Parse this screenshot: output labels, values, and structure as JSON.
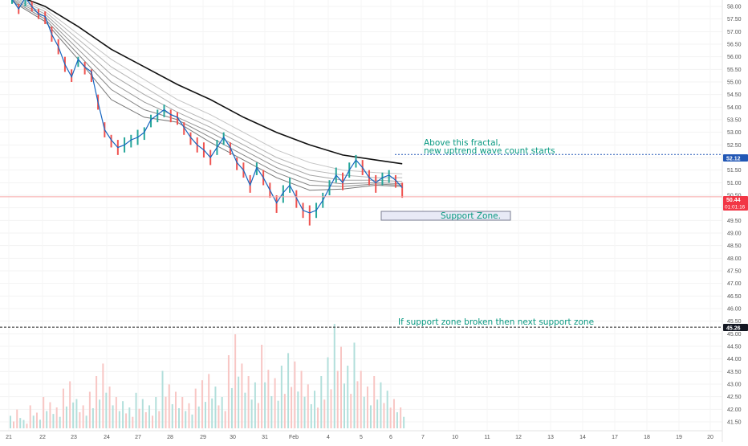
{
  "colors": {
    "up": "#26a69a",
    "down": "#ef5350",
    "up_volume": "#b2dfdb",
    "down_volume": "#f8c6c4",
    "price_line": "#1565c0",
    "slow_ma": "#111111",
    "ribbon": [
      "#c4c4c4",
      "#b6b6b6",
      "#a6a6a6",
      "#969696",
      "#868686",
      "#767676"
    ],
    "annotation": "#089981",
    "fractal_tag": "#2157b5",
    "last_price_tag": "#f23645",
    "support_line_tag": "#131722",
    "zone_fill": "#e8eaf6",
    "zone_border": "#7b7f93"
  },
  "chart_data": {
    "type": "candlestick",
    "y_ticks": [
      "58.00",
      "57.50",
      "57.00",
      "56.50",
      "56.00",
      "55.50",
      "55.00",
      "54.50",
      "54.00",
      "53.50",
      "53.00",
      "52.50",
      "52.00",
      "51.50",
      "51.00",
      "50.50",
      "50.00",
      "49.50",
      "49.00",
      "48.50",
      "48.00",
      "47.50",
      "47.00",
      "46.50",
      "46.00",
      "45.50",
      "45.00",
      "44.50",
      "44.00",
      "43.50",
      "43.00",
      "42.50",
      "42.00",
      "41.50"
    ],
    "ylim": [
      41.28,
      58.47
    ],
    "x_ticks": [
      "21",
      "22",
      "23",
      "24",
      "27",
      "28",
      "29",
      "30",
      "31",
      "Feb",
      "4",
      "5",
      "6",
      "7",
      "10",
      "11",
      "12",
      "13",
      "14",
      "17",
      "18",
      "19",
      "20"
    ],
    "price_points": [
      [
        0.0,
        58.3
      ],
      [
        0.4,
        57.9
      ],
      [
        0.8,
        58.35
      ],
      [
        1.2,
        58.0
      ],
      [
        1.6,
        57.7
      ],
      [
        2.0,
        57.6
      ],
      [
        2.4,
        56.9
      ],
      [
        2.8,
        56.4
      ],
      [
        3.2,
        55.7
      ],
      [
        3.6,
        55.2
      ],
      [
        4.0,
        55.9
      ],
      [
        4.4,
        55.6
      ],
      [
        4.8,
        55.4
      ],
      [
        5.2,
        54.2
      ],
      [
        5.6,
        53.1
      ],
      [
        6.0,
        52.7
      ],
      [
        6.4,
        52.4
      ],
      [
        6.8,
        52.5
      ],
      [
        7.2,
        52.7
      ],
      [
        7.6,
        52.8
      ],
      [
        8.0,
        53.0
      ],
      [
        8.4,
        53.5
      ],
      [
        8.8,
        53.7
      ],
      [
        9.2,
        53.9
      ],
      [
        9.6,
        53.7
      ],
      [
        10.0,
        53.6
      ],
      [
        10.4,
        53.2
      ],
      [
        10.8,
        52.8
      ],
      [
        11.2,
        52.5
      ],
      [
        11.6,
        52.3
      ],
      [
        12.0,
        52.0
      ],
      [
        12.4,
        52.4
      ],
      [
        12.8,
        52.8
      ],
      [
        13.2,
        52.4
      ],
      [
        13.6,
        51.8
      ],
      [
        14.0,
        51.5
      ],
      [
        14.4,
        50.9
      ],
      [
        14.8,
        51.6
      ],
      [
        15.2,
        51.2
      ],
      [
        15.6,
        50.7
      ],
      [
        16.0,
        50.2
      ],
      [
        16.4,
        50.6
      ],
      [
        16.8,
        50.9
      ],
      [
        17.2,
        50.4
      ],
      [
        17.6,
        49.9
      ],
      [
        18.0,
        49.8
      ],
      [
        18.4,
        49.9
      ],
      [
        18.8,
        50.3
      ],
      [
        19.2,
        50.8
      ],
      [
        19.6,
        51.3
      ],
      [
        20.0,
        51.0
      ],
      [
        20.4,
        51.5
      ],
      [
        20.8,
        51.9
      ],
      [
        21.2,
        51.6
      ],
      [
        21.6,
        51.2
      ],
      [
        22.0,
        51.0
      ],
      [
        22.4,
        51.2
      ],
      [
        22.8,
        51.3
      ],
      [
        23.2,
        51.1
      ],
      [
        23.6,
        50.8
      ]
    ],
    "wick_high": [
      58.5,
      58.1,
      58.4,
      58.2,
      57.9,
      57.8,
      57.2,
      56.7,
      56.0,
      55.5,
      56.0,
      55.8,
      55.5,
      54.5,
      53.4,
      52.9,
      52.7,
      52.8,
      52.9,
      53.1,
      53.2,
      53.7,
      53.9,
      54.1,
      53.9,
      53.8,
      53.4,
      53.0,
      52.8,
      52.6,
      52.3,
      52.7,
      53.0,
      52.6,
      52.0,
      51.8,
      51.3,
      51.8,
      51.5,
      51.0,
      50.5,
      50.9,
      51.2,
      50.7,
      50.2,
      50.1,
      50.2,
      50.6,
      51.1,
      51.6,
      51.4,
      51.8,
      52.1,
      51.9,
      51.5,
      51.3,
      51.4,
      51.5,
      51.3,
      51.0
    ],
    "wick_low": [
      58.1,
      57.7,
      58.0,
      57.8,
      57.5,
      57.3,
      56.6,
      56.1,
      55.4,
      55.0,
      55.6,
      55.3,
      55.0,
      53.9,
      52.8,
      52.4,
      52.1,
      52.2,
      52.4,
      52.5,
      52.7,
      53.2,
      53.4,
      53.6,
      53.4,
      53.3,
      52.9,
      52.5,
      52.2,
      52.0,
      51.7,
      52.1,
      52.5,
      52.1,
      51.5,
      51.2,
      50.6,
      51.3,
      50.9,
      50.4,
      49.8,
      50.2,
      50.6,
      50.0,
      49.6,
      49.3,
      49.6,
      50.0,
      50.5,
      51.0,
      50.7,
      51.2,
      51.6,
      51.3,
      50.9,
      50.6,
      50.9,
      51.0,
      50.8,
      50.4
    ],
    "moving_averages": {
      "slow": [
        [
          0.0,
          58.5
        ],
        [
          2.0,
          58.0
        ],
        [
          4.0,
          57.2
        ],
        [
          6.0,
          56.3
        ],
        [
          8.0,
          55.6
        ],
        [
          10.0,
          54.9
        ],
        [
          12.0,
          54.3
        ],
        [
          14.0,
          53.6
        ],
        [
          16.0,
          53.0
        ],
        [
          18.0,
          52.5
        ],
        [
          20.0,
          52.1
        ],
        [
          22.0,
          51.9
        ],
        [
          23.6,
          51.75
        ]
      ],
      "ribbon": [
        [
          [
            0.0,
            58.45
          ],
          [
            2.0,
            57.9
          ],
          [
            4.0,
            56.9
          ],
          [
            6.0,
            55.9
          ],
          [
            8.0,
            55.1
          ],
          [
            10.0,
            54.3
          ],
          [
            12.0,
            53.7
          ],
          [
            14.0,
            53.0
          ],
          [
            16.0,
            52.3
          ],
          [
            18.0,
            51.8
          ],
          [
            20.0,
            51.5
          ],
          [
            22.0,
            51.4
          ],
          [
            23.6,
            51.35
          ]
        ],
        [
          [
            0.0,
            58.4
          ],
          [
            2.0,
            57.8
          ],
          [
            4.0,
            56.7
          ],
          [
            6.0,
            55.6
          ],
          [
            8.0,
            54.8
          ],
          [
            10.0,
            54.0
          ],
          [
            12.0,
            53.4
          ],
          [
            14.0,
            52.7
          ],
          [
            16.0,
            52.0
          ],
          [
            18.0,
            51.5
          ],
          [
            20.0,
            51.3
          ],
          [
            22.0,
            51.2
          ],
          [
            23.6,
            51.2
          ]
        ],
        [
          [
            0.0,
            58.35
          ],
          [
            2.0,
            57.7
          ],
          [
            4.0,
            56.5
          ],
          [
            6.0,
            55.3
          ],
          [
            8.0,
            54.5
          ],
          [
            10.0,
            53.8
          ],
          [
            12.0,
            53.2
          ],
          [
            14.0,
            52.5
          ],
          [
            16.0,
            51.8
          ],
          [
            18.0,
            51.3
          ],
          [
            20.0,
            51.1
          ],
          [
            22.0,
            51.1
          ],
          [
            23.6,
            51.05
          ]
        ],
        [
          [
            0.0,
            58.3
          ],
          [
            2.0,
            57.6
          ],
          [
            4.0,
            56.3
          ],
          [
            6.0,
            55.0
          ],
          [
            8.0,
            54.2
          ],
          [
            10.0,
            53.6
          ],
          [
            12.0,
            53.0
          ],
          [
            14.0,
            52.3
          ],
          [
            16.0,
            51.6
          ],
          [
            18.0,
            51.1
          ],
          [
            20.0,
            50.95
          ],
          [
            22.0,
            51.0
          ],
          [
            23.6,
            50.95
          ]
        ],
        [
          [
            0.0,
            58.25
          ],
          [
            2.0,
            57.5
          ],
          [
            4.0,
            56.1
          ],
          [
            6.0,
            54.7
          ],
          [
            8.0,
            53.9
          ],
          [
            10.0,
            53.5
          ],
          [
            12.0,
            52.8
          ],
          [
            14.0,
            52.1
          ],
          [
            16.0,
            51.4
          ],
          [
            18.0,
            50.9
          ],
          [
            20.0,
            50.85
          ],
          [
            22.0,
            50.95
          ],
          [
            23.6,
            50.9
          ]
        ],
        [
          [
            0.0,
            58.2
          ],
          [
            2.0,
            57.4
          ],
          [
            4.0,
            55.9
          ],
          [
            6.0,
            54.3
          ],
          [
            8.0,
            53.6
          ],
          [
            10.0,
            53.4
          ],
          [
            12.0,
            52.6
          ],
          [
            14.0,
            51.9
          ],
          [
            16.0,
            51.2
          ],
          [
            18.0,
            50.7
          ],
          [
            20.0,
            50.75
          ],
          [
            22.0,
            50.9
          ],
          [
            23.6,
            50.85
          ]
        ]
      ]
    },
    "volume": [
      0.12,
      0.18,
      0.08,
      0.22,
      0.15,
      0.3,
      0.25,
      0.2,
      0.38,
      0.45,
      0.28,
      0.22,
      0.35,
      0.5,
      0.62,
      0.4,
      0.3,
      0.26,
      0.2,
      0.34,
      0.28,
      0.22,
      0.3,
      0.55,
      0.42,
      0.35,
      0.3,
      0.24,
      0.38,
      0.46,
      0.52,
      0.4,
      0.3,
      0.7,
      0.9,
      0.62,
      0.5,
      0.44,
      0.8,
      0.56,
      0.48,
      0.6,
      0.72,
      0.64,
      0.55,
      0.42,
      0.36,
      0.5,
      0.68,
      1.0,
      0.78,
      0.6,
      0.82,
      0.55,
      0.4,
      0.5,
      0.44,
      0.36,
      0.28,
      0.2
    ],
    "annotations": {
      "fractal_note_line1": "Above this fractal,",
      "fractal_note_line2": "new uptrend wave count starts",
      "support_zone_label": "Support Zone.",
      "next_support_note": "If support zone broken then next support zone"
    },
    "levels": {
      "fractal": 52.12,
      "last_price": 50.44,
      "next_support": 45.26,
      "support_zone": [
        49.92,
        50.12
      ]
    },
    "price_tags": {
      "fractal": "52.12",
      "last_price": "50.44",
      "countdown": "01:01:16",
      "next_support": "45.26"
    }
  }
}
